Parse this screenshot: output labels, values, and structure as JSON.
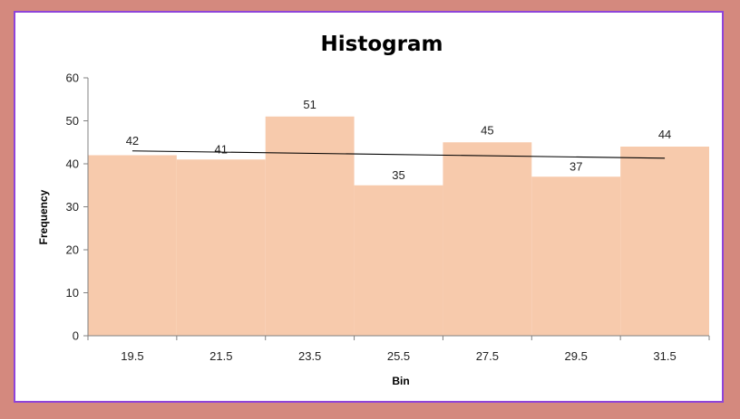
{
  "chart_data": {
    "type": "bar",
    "title": "Histogram",
    "xlabel": "Bin",
    "ylabel": "Frequency",
    "categories": [
      "19.5",
      "21.5",
      "23.5",
      "25.5",
      "27.5",
      "29.5",
      "31.5"
    ],
    "values": [
      42,
      41,
      51,
      35,
      45,
      37,
      44
    ],
    "ylim": [
      0,
      60
    ],
    "yticks": [
      0,
      10,
      20,
      30,
      40,
      50,
      60
    ],
    "bar_gap": 0,
    "trendline": {
      "type": "linear",
      "start": 43.0,
      "end": 41.3
    },
    "grid": false,
    "legend": "none"
  },
  "colors": {
    "bar": "#f7caac",
    "trendline": "#000000",
    "frame_border": "#8e44d9",
    "background": "#d4897e"
  }
}
